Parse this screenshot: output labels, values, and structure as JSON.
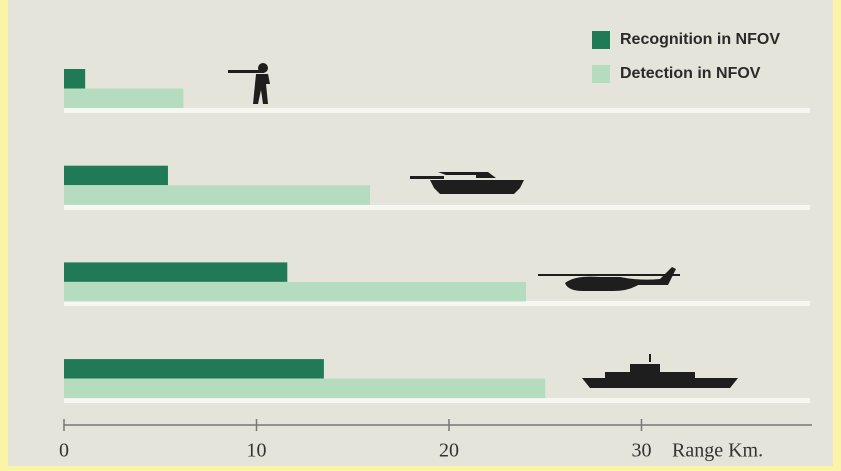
{
  "chart_data": {
    "type": "bar",
    "orientation": "horizontal",
    "categories": [
      null,
      null,
      null,
      null
    ],
    "series": [
      {
        "name": "Recognition in NFOV",
        "color": "#1f7a55",
        "values": [
          1.1,
          5.4,
          11.6,
          13.5
        ]
      },
      {
        "name": "Detection in NFOV",
        "color": "#b6dcc0",
        "values": [
          6.2,
          15.9,
          24.0,
          25.0
        ]
      }
    ],
    "x_label": "Range Km.",
    "xlim": [
      0,
      39
    ],
    "xticks": [
      0,
      10,
      20,
      30
    ],
    "grid": false,
    "legend": "top-right"
  }
}
